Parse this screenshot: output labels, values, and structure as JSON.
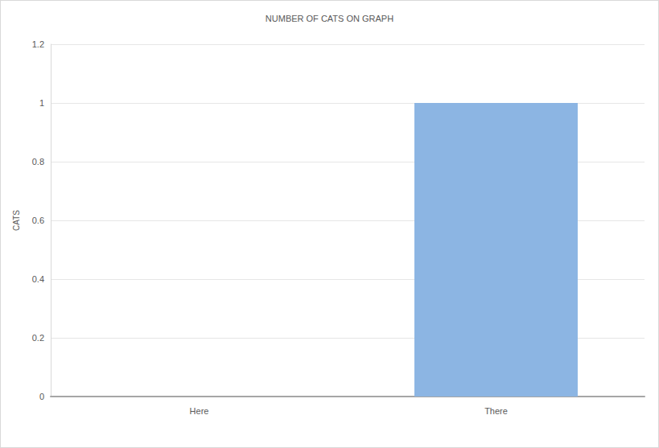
{
  "chart_data": {
    "type": "bar",
    "title": "NUMBER OF CATS ON GRAPH",
    "y_label": "CATS",
    "categories": [
      "Here",
      "There"
    ],
    "values": [
      0,
      1
    ],
    "color": "#8cb5e3",
    "ylim": [
      0,
      1.2
    ],
    "yticks": [
      0,
      0.2,
      0.4,
      0.6,
      0.8,
      1,
      1.2
    ],
    "grid": true
  }
}
